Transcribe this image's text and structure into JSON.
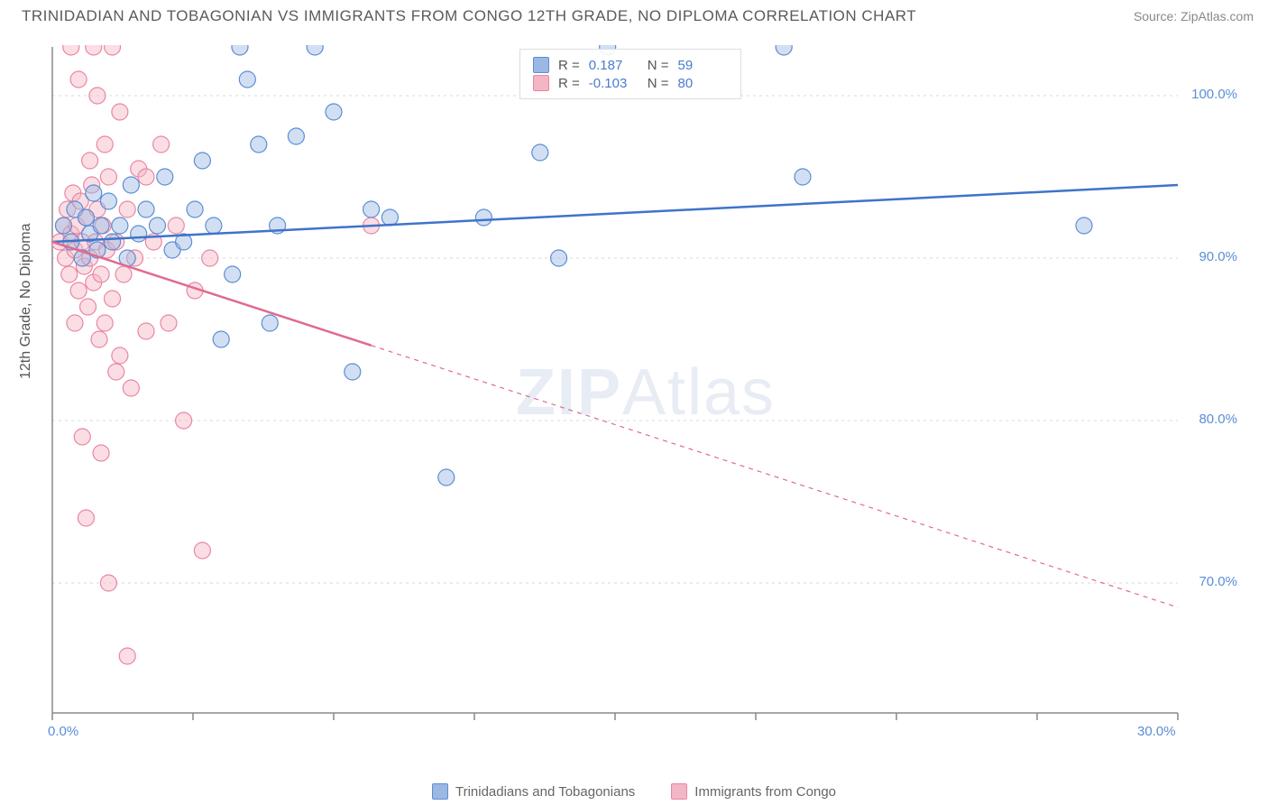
{
  "title": "TRINIDADIAN AND TOBAGONIAN VS IMMIGRANTS FROM CONGO 12TH GRADE, NO DIPLOMA CORRELATION CHART",
  "source": "Source: ZipAtlas.com",
  "y_axis_label": "12th Grade, No Diploma",
  "watermark": {
    "bold": "ZIP",
    "rest": "Atlas"
  },
  "chart": {
    "type": "scatter",
    "xlim": [
      0,
      30
    ],
    "ylim": [
      62,
      103
    ],
    "x_ticks": [
      0,
      3.75,
      7.5,
      11.25,
      15,
      18.75,
      22.5,
      26.25,
      30
    ],
    "x_tick_labels": {
      "0": "0.0%",
      "30": "30.0%"
    },
    "y_ticks": [
      70,
      80,
      90,
      100
    ],
    "y_tick_labels": {
      "70": "70.0%",
      "80": "80.0%",
      "90": "90.0%",
      "100": "100.0%"
    },
    "grid_color": "#d9d9d9",
    "axis_color": "#888888",
    "background": "#ffffff",
    "marker_radius": 9,
    "marker_opacity": 0.45,
    "marker_stroke_width": 1.2,
    "line_width": 2.5,
    "series": [
      {
        "name": "Trinidadians and Tobagonians",
        "color_fill": "#9bb8e3",
        "color_stroke": "#5b8dd6",
        "line_color": "#3e74c9",
        "regression": {
          "x0": 0,
          "y0": 91.0,
          "x1": 30,
          "y1": 94.5,
          "solid_until_x": 30
        },
        "stats": {
          "R": "0.187",
          "N": "59"
        },
        "points": [
          [
            0.3,
            92
          ],
          [
            0.5,
            91
          ],
          [
            0.6,
            93
          ],
          [
            0.8,
            90
          ],
          [
            0.9,
            92.5
          ],
          [
            1.0,
            91.5
          ],
          [
            1.1,
            94
          ],
          [
            1.2,
            90.5
          ],
          [
            1.3,
            92
          ],
          [
            1.5,
            93.5
          ],
          [
            1.6,
            91
          ],
          [
            1.8,
            92
          ],
          [
            2.0,
            90
          ],
          [
            2.1,
            94.5
          ],
          [
            2.3,
            91.5
          ],
          [
            2.5,
            93
          ],
          [
            2.8,
            92
          ],
          [
            3.0,
            95
          ],
          [
            3.2,
            90.5
          ],
          [
            3.5,
            91
          ],
          [
            3.8,
            93
          ],
          [
            4.0,
            96
          ],
          [
            4.3,
            92
          ],
          [
            4.5,
            85
          ],
          [
            4.8,
            89
          ],
          [
            5.0,
            103
          ],
          [
            5.2,
            101
          ],
          [
            5.5,
            97
          ],
          [
            5.8,
            86
          ],
          [
            6.0,
            92
          ],
          [
            6.5,
            97.5
          ],
          [
            7.0,
            103
          ],
          [
            7.5,
            99
          ],
          [
            8.0,
            83
          ],
          [
            8.5,
            93
          ],
          [
            9.0,
            92.5
          ],
          [
            10.5,
            76.5
          ],
          [
            11.5,
            92.5
          ],
          [
            13.0,
            96.5
          ],
          [
            13.5,
            90
          ],
          [
            14.8,
            103
          ],
          [
            19.5,
            103
          ],
          [
            20.0,
            95
          ],
          [
            27.5,
            92
          ]
        ]
      },
      {
        "name": "Immigrants from Congo",
        "color_fill": "#f3b6c4",
        "color_stroke": "#e986a3",
        "line_color": "#e06b8f",
        "regression": {
          "x0": 0,
          "y0": 91.0,
          "x1": 30,
          "y1": 68.5,
          "solid_until_x": 8.5
        },
        "stats": {
          "R": "-0.103",
          "N": "80"
        },
        "points": [
          [
            0.2,
            91
          ],
          [
            0.3,
            92
          ],
          [
            0.35,
            90
          ],
          [
            0.4,
            93
          ],
          [
            0.45,
            89
          ],
          [
            0.5,
            91.5
          ],
          [
            0.55,
            94
          ],
          [
            0.6,
            90.5
          ],
          [
            0.65,
            92
          ],
          [
            0.7,
            88
          ],
          [
            0.75,
            93.5
          ],
          [
            0.8,
            91
          ],
          [
            0.85,
            89.5
          ],
          [
            0.9,
            92.5
          ],
          [
            0.95,
            87
          ],
          [
            1.0,
            90
          ],
          [
            1.05,
            94.5
          ],
          [
            1.1,
            88.5
          ],
          [
            1.15,
            91
          ],
          [
            1.2,
            93
          ],
          [
            1.25,
            85
          ],
          [
            1.3,
            89
          ],
          [
            1.35,
            92
          ],
          [
            1.4,
            86
          ],
          [
            1.45,
            90.5
          ],
          [
            1.5,
            95
          ],
          [
            1.6,
            87.5
          ],
          [
            1.7,
            91
          ],
          [
            1.8,
            84
          ],
          [
            1.9,
            89
          ],
          [
            2.0,
            93
          ],
          [
            2.1,
            82
          ],
          [
            2.2,
            90
          ],
          [
            2.3,
            95.5
          ],
          [
            2.5,
            85.5
          ],
          [
            2.7,
            91
          ],
          [
            2.9,
            97
          ],
          [
            3.1,
            86
          ],
          [
            3.3,
            92
          ],
          [
            3.5,
            80
          ],
          [
            3.8,
            88
          ],
          [
            4.0,
            72
          ],
          [
            4.2,
            90
          ],
          [
            0.8,
            79
          ],
          [
            0.9,
            74
          ],
          [
            1.1,
            103
          ],
          [
            1.2,
            100
          ],
          [
            1.4,
            97
          ],
          [
            1.6,
            103
          ],
          [
            1.8,
            99
          ],
          [
            0.5,
            103
          ],
          [
            0.7,
            101
          ],
          [
            1.0,
            96
          ],
          [
            1.5,
            70
          ],
          [
            2.0,
            65.5
          ],
          [
            2.5,
            95
          ],
          [
            1.3,
            78
          ],
          [
            0.6,
            86
          ],
          [
            1.7,
            83
          ],
          [
            8.5,
            92
          ]
        ]
      }
    ]
  },
  "bottom_legend": [
    {
      "label": "Trinidadians and Tobagonians",
      "swatch_fill": "#9bb8e3",
      "swatch_stroke": "#5b8dd6"
    },
    {
      "label": "Immigrants from Congo",
      "swatch_fill": "#f3b6c4",
      "swatch_stroke": "#e986a3"
    }
  ],
  "stats_box": {
    "rows": [
      {
        "swatch_fill": "#9bb8e3",
        "swatch_stroke": "#5b8dd6",
        "r_label": "R =",
        "r_val": "0.187",
        "n_label": "N =",
        "n_val": "59"
      },
      {
        "swatch_fill": "#f3b6c4",
        "swatch_stroke": "#e986a3",
        "r_label": "R =",
        "r_val": "-0.103",
        "n_label": "N =",
        "n_val": "80"
      }
    ]
  }
}
